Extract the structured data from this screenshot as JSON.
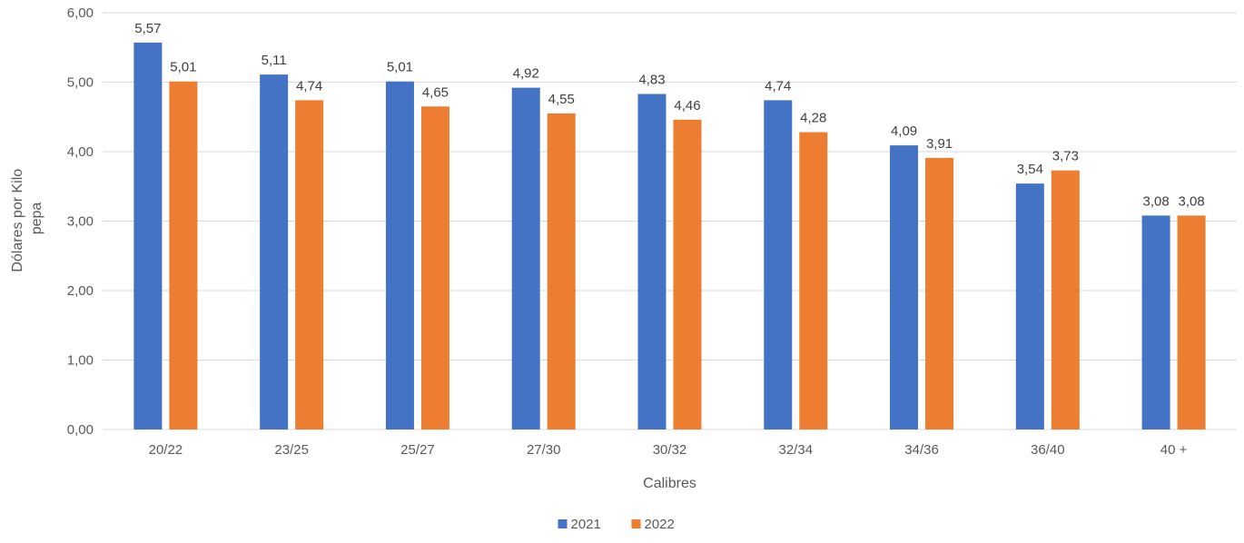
{
  "chart_data": {
    "type": "bar",
    "title": "",
    "xlabel": "Calibres",
    "ylabel": "Dólares por Kilo pepa",
    "ylabel_lines": [
      "Dólares por Kilo",
      "pepa"
    ],
    "categories": [
      "20/22",
      "23/25",
      "25/27",
      "27/30",
      "30/32",
      "32/34",
      "34/36",
      "36/40",
      "40 +"
    ],
    "series": [
      {
        "name": "2021",
        "color": "#4472C4",
        "values": [
          5.57,
          5.11,
          5.01,
          4.92,
          4.83,
          4.74,
          4.09,
          3.54,
          3.08
        ],
        "labels": [
          "5,57",
          "5,11",
          "5,01",
          "4,92",
          "4,83",
          "4,74",
          "4,09",
          "3,54",
          "3,08"
        ]
      },
      {
        "name": "2022",
        "color": "#ED7D31",
        "values": [
          5.01,
          4.74,
          4.65,
          4.55,
          4.46,
          4.28,
          3.91,
          3.73,
          3.08
        ],
        "labels": [
          "5,01",
          "4,74",
          "4,65",
          "4,55",
          "4,46",
          "4,28",
          "3,91",
          "3,73",
          "3,08"
        ]
      }
    ],
    "ylim": [
      0,
      6
    ],
    "yticks": [
      0,
      1,
      2,
      3,
      4,
      5,
      6
    ],
    "ytick_labels": [
      "0,00",
      "1,00",
      "2,00",
      "3,00",
      "4,00",
      "5,00",
      "6,00"
    ],
    "grid": true,
    "gridline_color": "#D9D9D9",
    "legend_position": "bottom"
  }
}
